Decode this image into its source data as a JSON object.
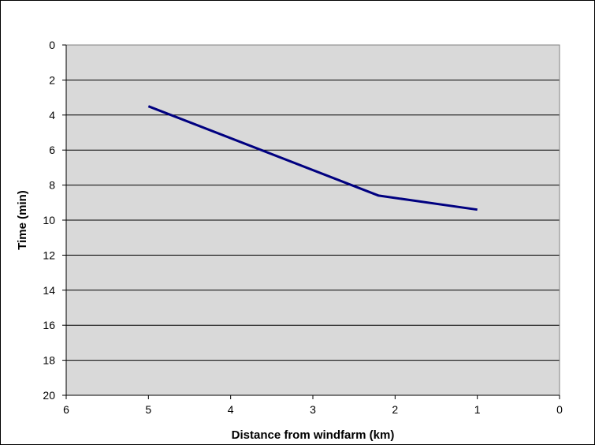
{
  "chart_data": {
    "type": "line",
    "title": "",
    "xlabel": "Distance from windfarm (km)",
    "ylabel": "Time (min)",
    "xlim": [
      6,
      0
    ],
    "ylim": [
      0,
      20
    ],
    "x_reversed": true,
    "y_reversed": true,
    "x_ticks": [
      6,
      5,
      4,
      3,
      2,
      1,
      0
    ],
    "y_ticks": [
      0,
      2,
      4,
      6,
      8,
      10,
      12,
      14,
      16,
      18,
      20
    ],
    "grid": "horizontal",
    "legend": "none",
    "series": [
      {
        "x": [
          5,
          2.2,
          1
        ],
        "y": [
          3.5,
          8.6,
          9.4
        ],
        "color": "#000080"
      }
    ],
    "colors": {
      "plot_background": "#d9d9d9",
      "gridline": "#000000",
      "line": "#000080"
    }
  }
}
